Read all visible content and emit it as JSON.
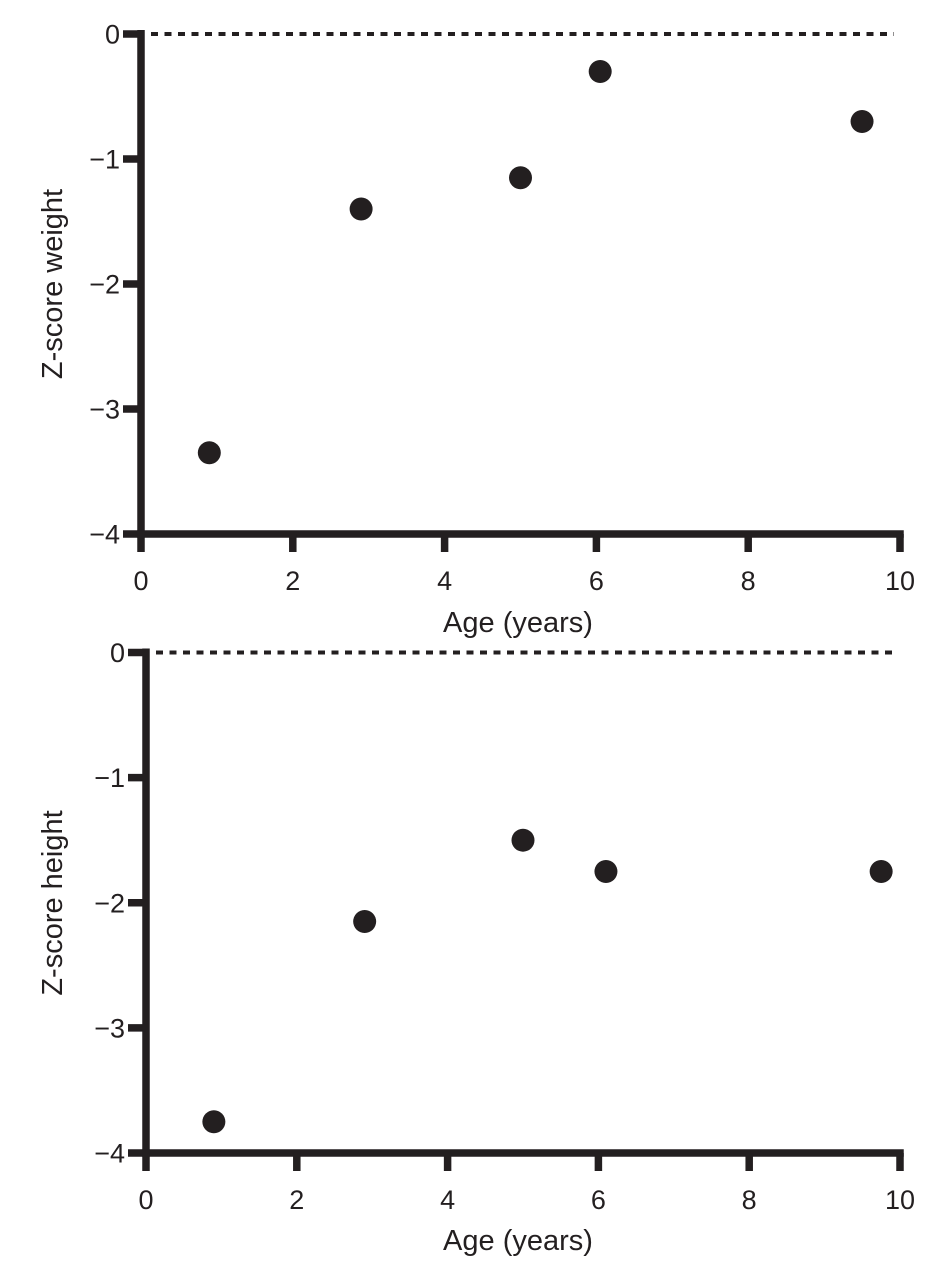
{
  "figure": {
    "description": "Two stacked scatter plots of growth z-scores versus age",
    "background": "#ffffff",
    "ink": "#231f20"
  },
  "chart_data": [
    {
      "type": "scatter",
      "title": "",
      "xlabel": "Age (years)",
      "ylabel": "Z-score weight",
      "xlim": [
        0,
        10
      ],
      "ylim": [
        -4,
        0
      ],
      "xticks": [
        0,
        2,
        4,
        6,
        8,
        10
      ],
      "xtick_labels": [
        "0",
        "2",
        "4",
        "6",
        "8",
        "10"
      ],
      "yticks": [
        0,
        -1,
        -2,
        -3,
        -4
      ],
      "ytick_labels": [
        "0",
        "−1",
        "−2",
        "−3",
        "−4"
      ],
      "grid": false,
      "legend": "none",
      "reference_line_y": 0,
      "reference_line_style": "dotted",
      "marker": {
        "shape": "circle",
        "color": "#231f20",
        "radius_px": 11.5
      },
      "points": [
        {
          "x": 0.9,
          "y": -3.35
        },
        {
          "x": 2.9,
          "y": -1.4
        },
        {
          "x": 5.0,
          "y": -1.15
        },
        {
          "x": 6.05,
          "y": -0.3
        },
        {
          "x": 9.5,
          "y": -0.7
        }
      ]
    },
    {
      "type": "scatter",
      "title": "",
      "xlabel": "Age (years)",
      "ylabel": "Z-score height",
      "xlim": [
        0,
        10
      ],
      "ylim": [
        -4,
        0
      ],
      "xticks": [
        0,
        2,
        4,
        6,
        8,
        10
      ],
      "xtick_labels": [
        "0",
        "2",
        "4",
        "6",
        "8",
        "10"
      ],
      "yticks": [
        0,
        -1,
        -2,
        -3,
        -4
      ],
      "ytick_labels": [
        "0",
        "−1",
        "−2",
        "−3",
        "−4"
      ],
      "grid": false,
      "legend": "none",
      "reference_line_y": 0,
      "reference_line_style": "dotted",
      "marker": {
        "shape": "circle",
        "color": "#231f20",
        "radius_px": 11.5
      },
      "points": [
        {
          "x": 0.9,
          "y": -3.75
        },
        {
          "x": 2.9,
          "y": -2.15
        },
        {
          "x": 5.0,
          "y": -1.5
        },
        {
          "x": 6.1,
          "y": -1.75
        },
        {
          "x": 9.75,
          "y": -1.75
        }
      ]
    }
  ]
}
